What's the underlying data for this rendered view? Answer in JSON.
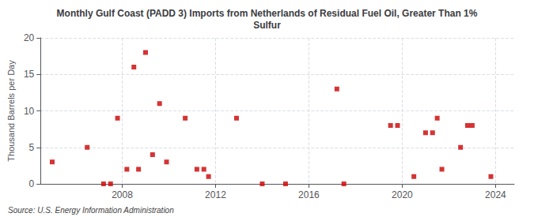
{
  "chart_data": {
    "type": "scatter",
    "title": "Monthly Gulf Coast (PADD 3) Imports from Netherlands of Residual Fuel Oil, Greater Than 1%\nSulfur",
    "ylabel": "Thousand Barrels per Day",
    "source": "Source: U.S. Energy Information Administration",
    "color": "#cc0000",
    "marker": "square",
    "x": [
      2005.0,
      2006.5,
      2007.2,
      2007.5,
      2007.8,
      2008.2,
      2008.5,
      2008.7,
      2009.0,
      2009.3,
      2009.6,
      2009.9,
      2010.7,
      2011.2,
      2011.5,
      2011.7,
      2012.9,
      2014.0,
      2015.0,
      2017.2,
      2017.5,
      2019.5,
      2019.8,
      2020.5,
      2021.0,
      2021.3,
      2021.5,
      2021.7,
      2022.5,
      2022.8,
      2023.0,
      2023.8
    ],
    "values": [
      3.0,
      5.0,
      0.0,
      0.0,
      9.0,
      2.0,
      16.0,
      2.0,
      18.0,
      4.0,
      11.0,
      3.0,
      9.0,
      2.0,
      2.0,
      1.0,
      9.0,
      0.0,
      0.0,
      13.0,
      0.0,
      8.0,
      8.0,
      1.0,
      7.0,
      7.0,
      9.0,
      2.0,
      5.0,
      8.0,
      8.0,
      1.0
    ],
    "xlim": [
      2004.5,
      2024.8
    ],
    "xticks": [
      2008,
      2012,
      2016,
      2020,
      2024
    ],
    "ylim": [
      0,
      20
    ],
    "yticks": [
      0,
      5,
      10,
      15,
      20
    ],
    "grid": true
  }
}
